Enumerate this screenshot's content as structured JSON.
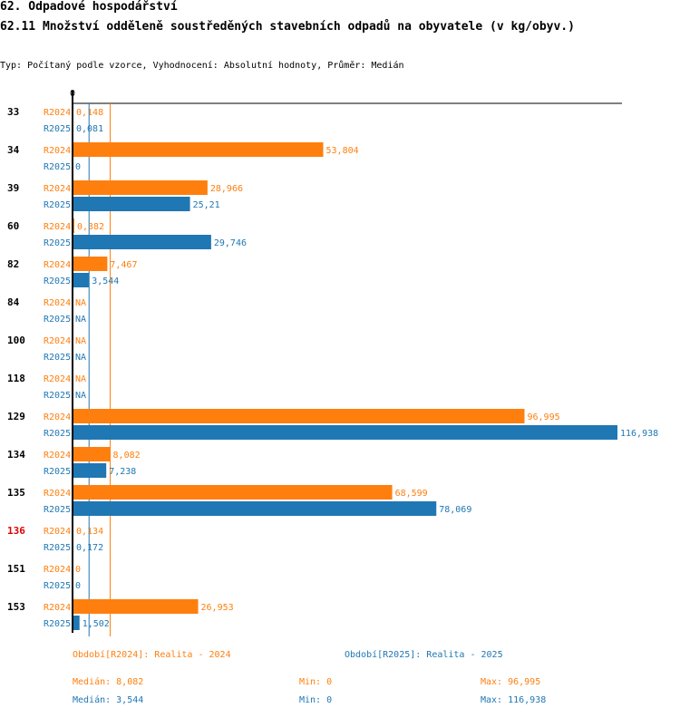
{
  "header": {
    "section_title": "62. Odpadové hospodářství",
    "chart_title": "62.11 Množství odděleně soustředěných stavebních odpadů na obyvatele (v kg/obyv.)",
    "subtitle": "Typ: Počítaný podle vzorce, Vyhodnocení: Absolutní hodnoty, Průměr: Medián"
  },
  "colors": {
    "r2024": "#ff7f0e",
    "r2025": "#1f77b4",
    "highlight": "#e00000"
  },
  "chart_data": {
    "type": "bar",
    "orientation": "horizontal",
    "axis_zero_label": "0",
    "xlim": [
      0,
      116.938
    ],
    "categories": [
      "33",
      "34",
      "39",
      "60",
      "82",
      "84",
      "100",
      "118",
      "129",
      "134",
      "135",
      "136",
      "151",
      "153"
    ],
    "highlighted_category": "136",
    "series": [
      {
        "name": "R2024",
        "values": [
          0.148,
          53.804,
          28.966,
          0.382,
          7.467,
          null,
          null,
          null,
          96.995,
          8.082,
          68.599,
          0.134,
          0,
          26.953
        ],
        "labels": [
          "0,148",
          "53,804",
          "28,966",
          "0,382",
          "7,467",
          "NA",
          "NA",
          "NA",
          "96,995",
          "8,082",
          "68,599",
          "0,134",
          "0",
          "26,953"
        ]
      },
      {
        "name": "R2025",
        "values": [
          0.081,
          0,
          25.21,
          29.746,
          3.544,
          null,
          null,
          null,
          116.938,
          7.238,
          78.069,
          0.172,
          0,
          1.502
        ],
        "labels": [
          "0,081",
          "0",
          "25,21",
          "29,746",
          "3,544",
          "NA",
          "NA",
          "NA",
          "116,938",
          "7,238",
          "78,069",
          "0,172",
          "0",
          "1,502"
        ]
      }
    ],
    "median_lines": {
      "R2024": 8.082,
      "R2025": 3.544
    }
  },
  "footer": {
    "legend_2024": "Období[R2024]: Realita - 2024",
    "legend_2025": "Období[R2025]: Realita - 2025",
    "median_2024": "Medián: 8,082",
    "min_2024": "Min: 0",
    "max_2024": "Max: 96,995",
    "median_2025": "Medián: 3,544",
    "min_2025": "Min: 0",
    "max_2025": "Max: 116,938"
  }
}
